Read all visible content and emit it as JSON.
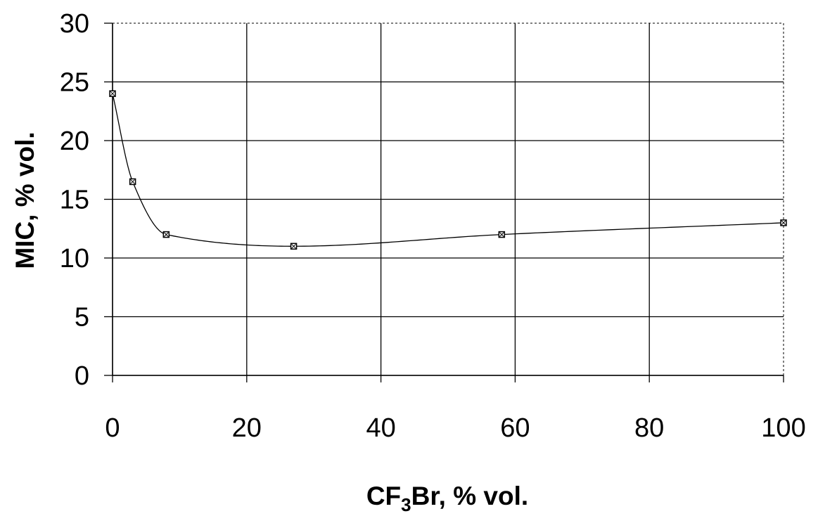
{
  "chart_data": {
    "type": "scatter",
    "title": "",
    "xlabel": {
      "main": "CF",
      "sub": "3",
      "rest": "Br, % vol."
    },
    "ylabel": "MIC, % vol.",
    "xlim": [
      0,
      100
    ],
    "ylim": [
      0,
      30
    ],
    "x_ticks": [
      0,
      20,
      40,
      60,
      80,
      100
    ],
    "y_ticks": [
      0,
      5,
      10,
      15,
      20,
      25,
      30
    ],
    "grid": true,
    "smooth_line": true,
    "series": [
      {
        "x": [
          0,
          3,
          8,
          27,
          58,
          100
        ],
        "y": [
          24,
          16.5,
          12,
          11,
          12,
          13
        ]
      }
    ]
  },
  "colors": {
    "line": "#000000",
    "grid": "#000000",
    "background": "#ffffff"
  }
}
